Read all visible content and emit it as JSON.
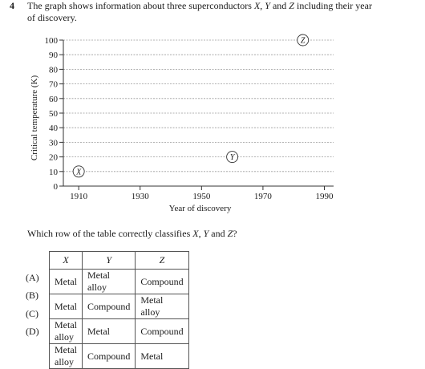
{
  "question": {
    "number": "4",
    "text_parts": [
      "The graph shows information about three superconductors ",
      "X",
      ", ",
      "Y",
      " and ",
      "Z",
      " including their year of discovery."
    ]
  },
  "chart_data": {
    "type": "scatter",
    "xlabel": "Year of discovery",
    "ylabel": "Critical temperature (K)",
    "xlim": [
      1905,
      1993
    ],
    "ylim": [
      0,
      100
    ],
    "x_ticks": [
      1910,
      1930,
      1950,
      1970,
      1990
    ],
    "y_ticks": [
      0,
      10,
      20,
      30,
      40,
      50,
      60,
      70,
      80,
      90,
      100
    ],
    "grid": "horizontal dashed",
    "points": [
      {
        "label": "X",
        "x": 1910,
        "y": 10
      },
      {
        "label": "Y",
        "x": 1960,
        "y": 20
      },
      {
        "label": "Z",
        "x": 1983,
        "y": 100
      }
    ]
  },
  "prompt_parts": [
    "Which row of the table correctly classifies ",
    "X",
    ", ",
    "Y",
    " and ",
    "Z",
    "?"
  ],
  "table": {
    "headers": [
      "X",
      "Y",
      "Z"
    ],
    "rows": [
      {
        "option": "(A)",
        "cells": [
          "Metal",
          "Metal alloy",
          "Compound"
        ]
      },
      {
        "option": "(B)",
        "cells": [
          "Metal",
          "Compound",
          "Metal alloy"
        ]
      },
      {
        "option": "(C)",
        "cells": [
          "Metal alloy",
          "Metal",
          "Compound"
        ]
      },
      {
        "option": "(D)",
        "cells": [
          "Metal alloy",
          "Compound",
          "Metal"
        ]
      }
    ]
  }
}
